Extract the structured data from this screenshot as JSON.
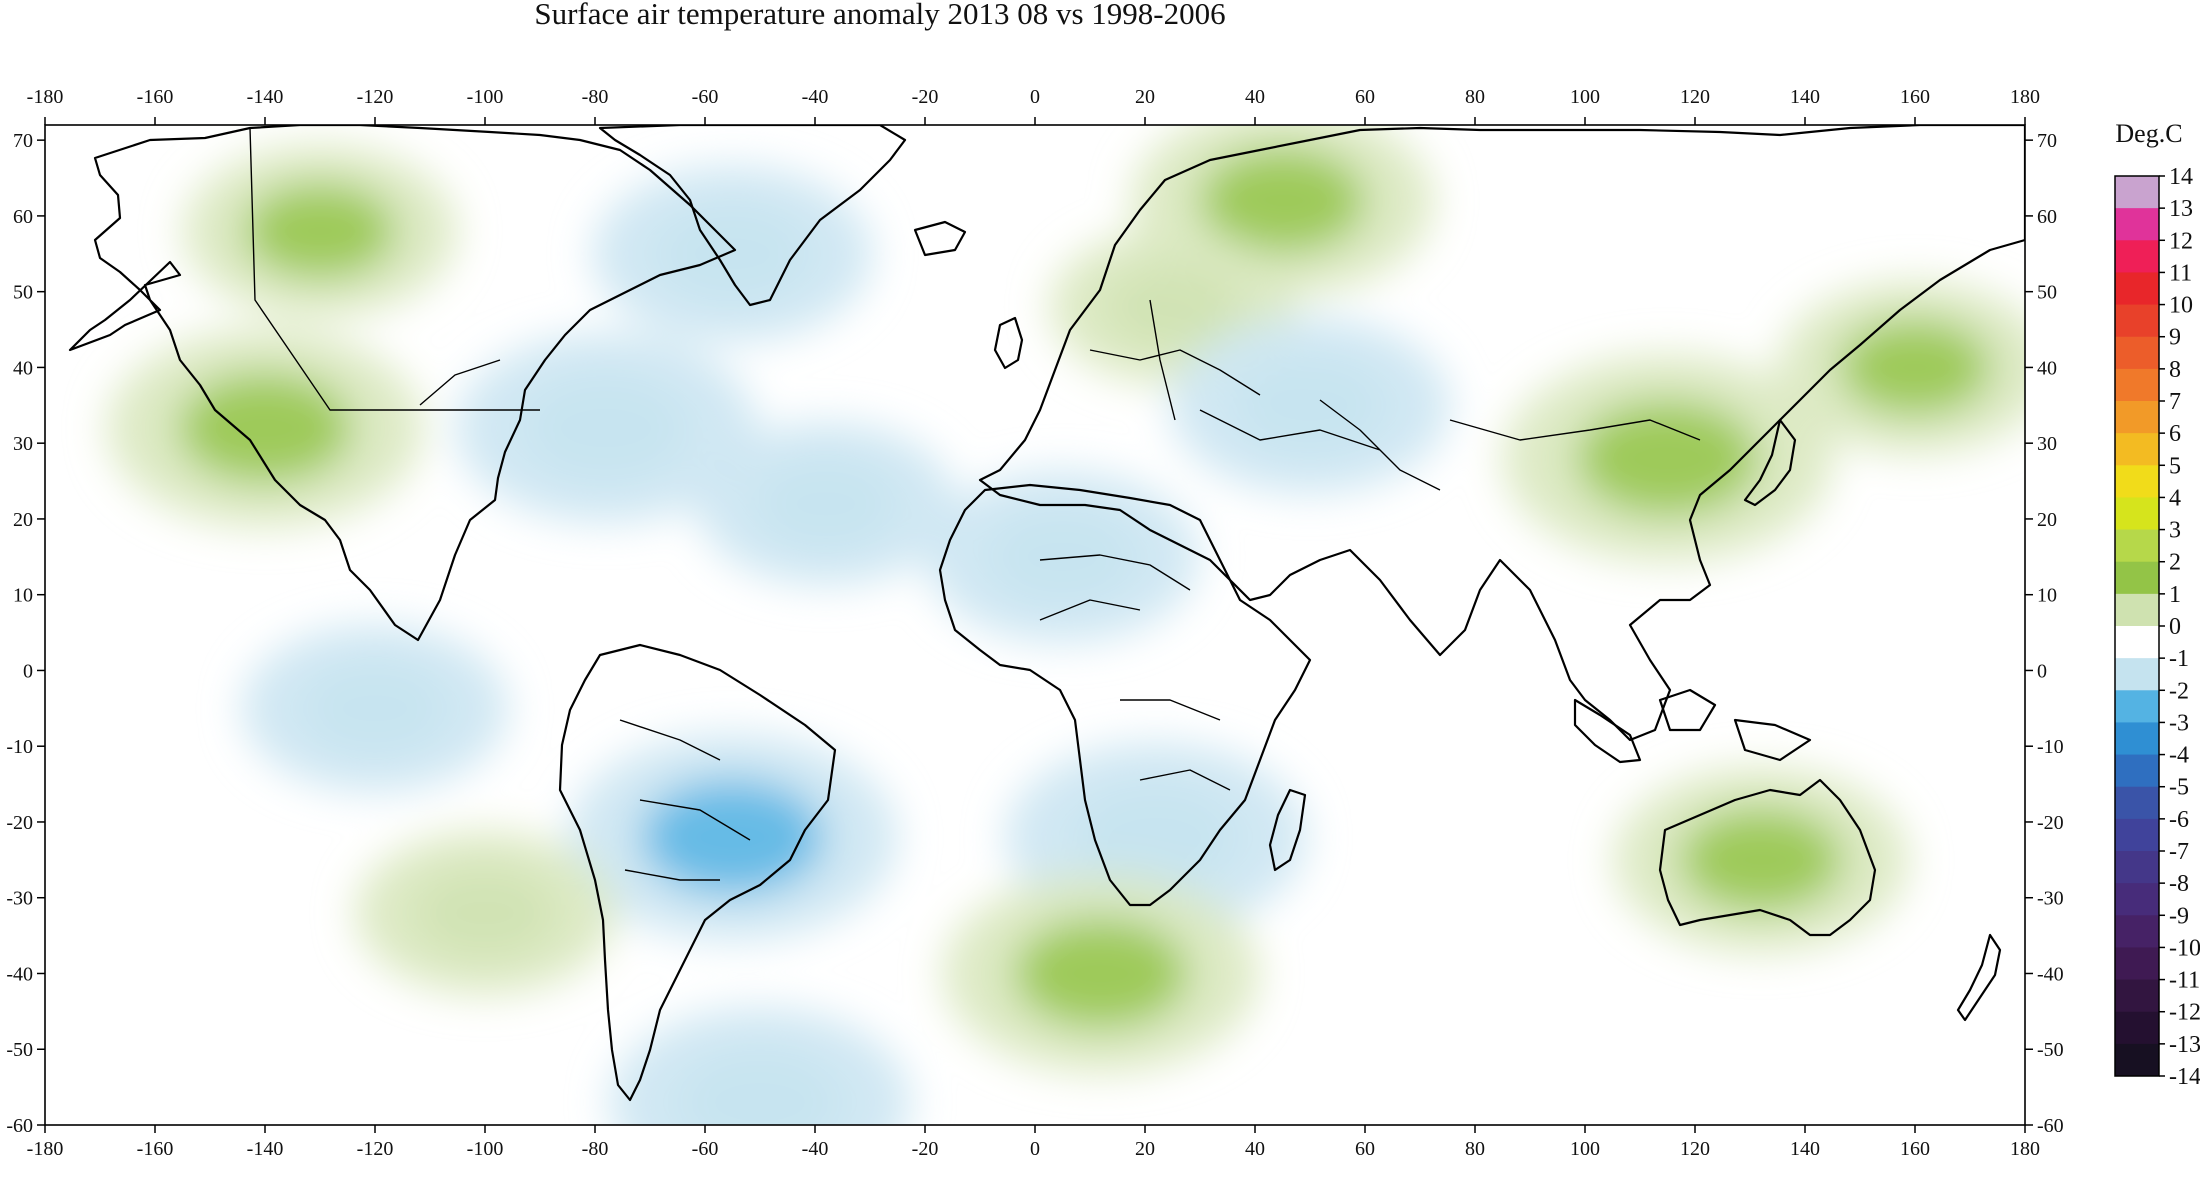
{
  "title": "Surface air temperature anomaly 2013 08 vs 1998-2006",
  "colorbar": {
    "unit": "Deg.C",
    "levels": [
      14,
      13,
      12,
      11,
      10,
      9,
      8,
      7,
      6,
      5,
      4,
      3,
      2,
      1,
      0,
      -1,
      -2,
      -3,
      -4,
      -5,
      -6,
      -7,
      -8,
      -9,
      -10,
      -11,
      -12,
      -13,
      -14
    ],
    "colors": [
      "#c9a3cf",
      "#e0339a",
      "#ef1f57",
      "#e8262a",
      "#e8412a",
      "#ec5d2a",
      "#f0792a",
      "#f29a28",
      "#f3bb22",
      "#f1dc1a",
      "#d6e41c",
      "#b6d84a",
      "#93c447",
      "#cfe2b0",
      "#ffffff",
      "#c5e3ef",
      "#54b3e3",
      "#2f8fd3",
      "#2f6fc0",
      "#3a54a8",
      "#40439b",
      "#443789",
      "#472c7a",
      "#462266",
      "#3f1a53",
      "#321540",
      "#241030",
      "#171022"
    ]
  },
  "map": {
    "projection": "equirectangular",
    "lon_range": [
      -180,
      180
    ],
    "lat_range": [
      -60,
      72
    ],
    "lon_ticks": [
      -180,
      -160,
      -140,
      -120,
      -100,
      -80,
      -60,
      -40,
      -20,
      0,
      20,
      40,
      60,
      80,
      100,
      120,
      140,
      160,
      180
    ],
    "lat_ticks": [
      70,
      60,
      50,
      40,
      30,
      20,
      10,
      0,
      -10,
      -20,
      -30,
      -40,
      -50,
      -60
    ],
    "anomaly_regions": [
      {
        "name": "alaska-canada-warm",
        "lon": -130,
        "lat": 58,
        "value": 1.2
      },
      {
        "name": "ne-pacific-warm",
        "lon": -140,
        "lat": 32,
        "value": 1.8
      },
      {
        "name": "eastern-north-america-cool",
        "lon": -78,
        "lat": 32,
        "value": -1.6
      },
      {
        "name": "labrador-sea-cool",
        "lon": -55,
        "lat": 55,
        "value": -1.3
      },
      {
        "name": "north-atlantic-cool",
        "lon": -38,
        "lat": 22,
        "value": -1.0
      },
      {
        "name": "siberia-arctic-warm",
        "lon": 45,
        "lat": 62,
        "value": 1.6
      },
      {
        "name": "europe-warm",
        "lon": 25,
        "lat": 48,
        "value": 0.8
      },
      {
        "name": "east-china-warm",
        "lon": 115,
        "lat": 28,
        "value": 2.0
      },
      {
        "name": "nw-pacific-warm",
        "lon": 160,
        "lat": 40,
        "value": 1.2
      },
      {
        "name": "north-africa-cool",
        "lon": 5,
        "lat": 15,
        "value": -1.2
      },
      {
        "name": "caspian-cool",
        "lon": 50,
        "lat": 35,
        "value": -1.3
      },
      {
        "name": "australia-warm",
        "lon": 132,
        "lat": -25,
        "value": 1.5
      },
      {
        "name": "south-america-cool",
        "lon": -55,
        "lat": -22,
        "value": -2.0
      },
      {
        "name": "southern-africa-cool",
        "lon": 22,
        "lat": -22,
        "value": -1.6
      },
      {
        "name": "south-atlantic-warm",
        "lon": 12,
        "lat": -40,
        "value": 1.8
      },
      {
        "name": "southern-ocean-cool",
        "lon": -50,
        "lat": -57,
        "value": -1.6
      },
      {
        "name": "tropical-pacific-cool",
        "lon": -120,
        "lat": -5,
        "value": -1.1
      },
      {
        "name": "south-pacific-warm",
        "lon": -100,
        "lat": -32,
        "value": 1.0
      }
    ]
  }
}
